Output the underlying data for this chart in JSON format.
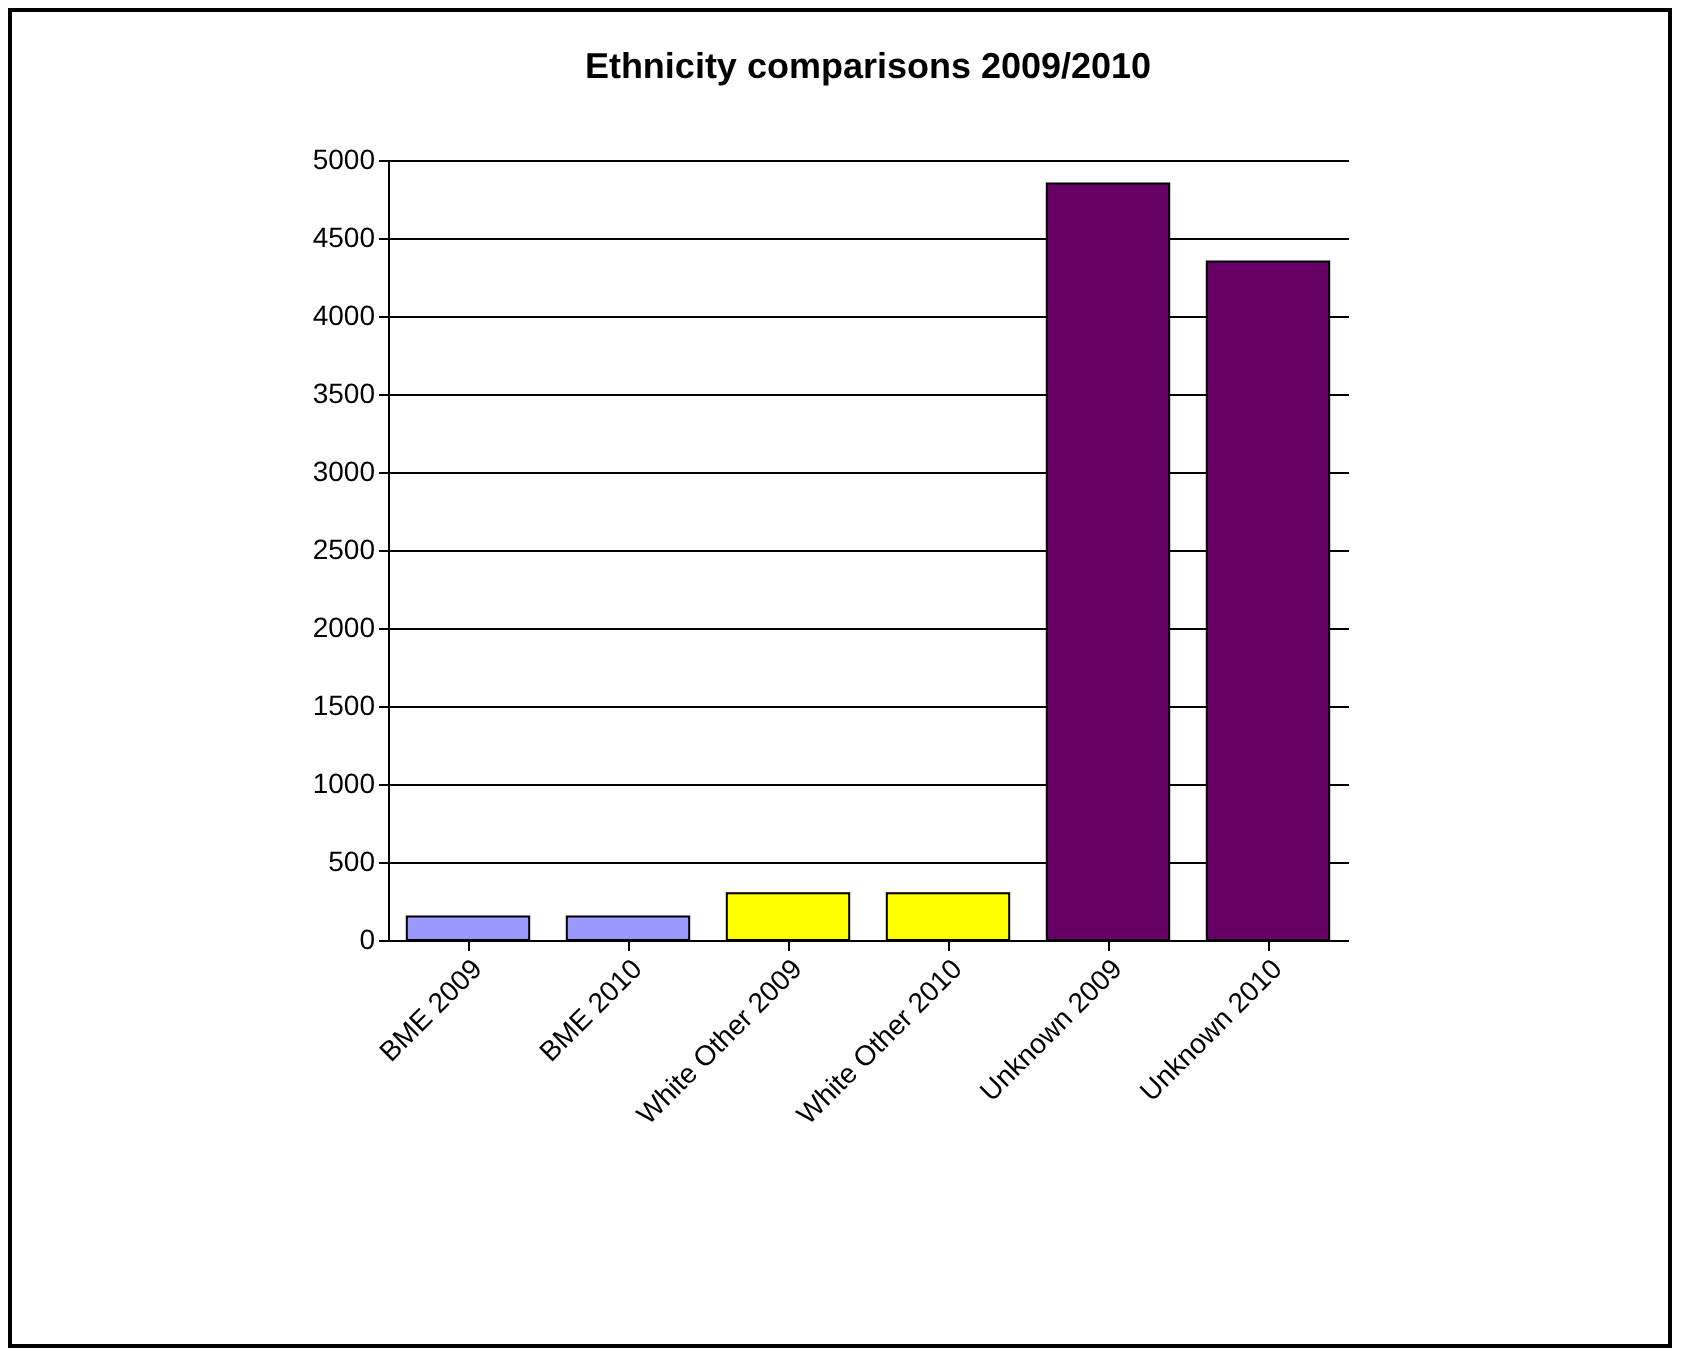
{
  "chart_data": {
    "type": "bar",
    "title": "Ethnicity comparisons 2009/2010",
    "categories": [
      "BME 2009",
      "BME 2010",
      "White Other 2009",
      "White Other 2010",
      "Unknown 2009",
      "Unknown 2010"
    ],
    "values": [
      150,
      150,
      300,
      300,
      4850,
      4350
    ],
    "colors": [
      "#9999ff",
      "#9999ff",
      "#ffff00",
      "#ffff00",
      "#660066",
      "#660066"
    ],
    "ylim": [
      0,
      5000
    ],
    "yticks": [
      0,
      500,
      1000,
      1500,
      2000,
      2500,
      3000,
      3500,
      4000,
      4500,
      5000
    ],
    "grid": "y"
  }
}
